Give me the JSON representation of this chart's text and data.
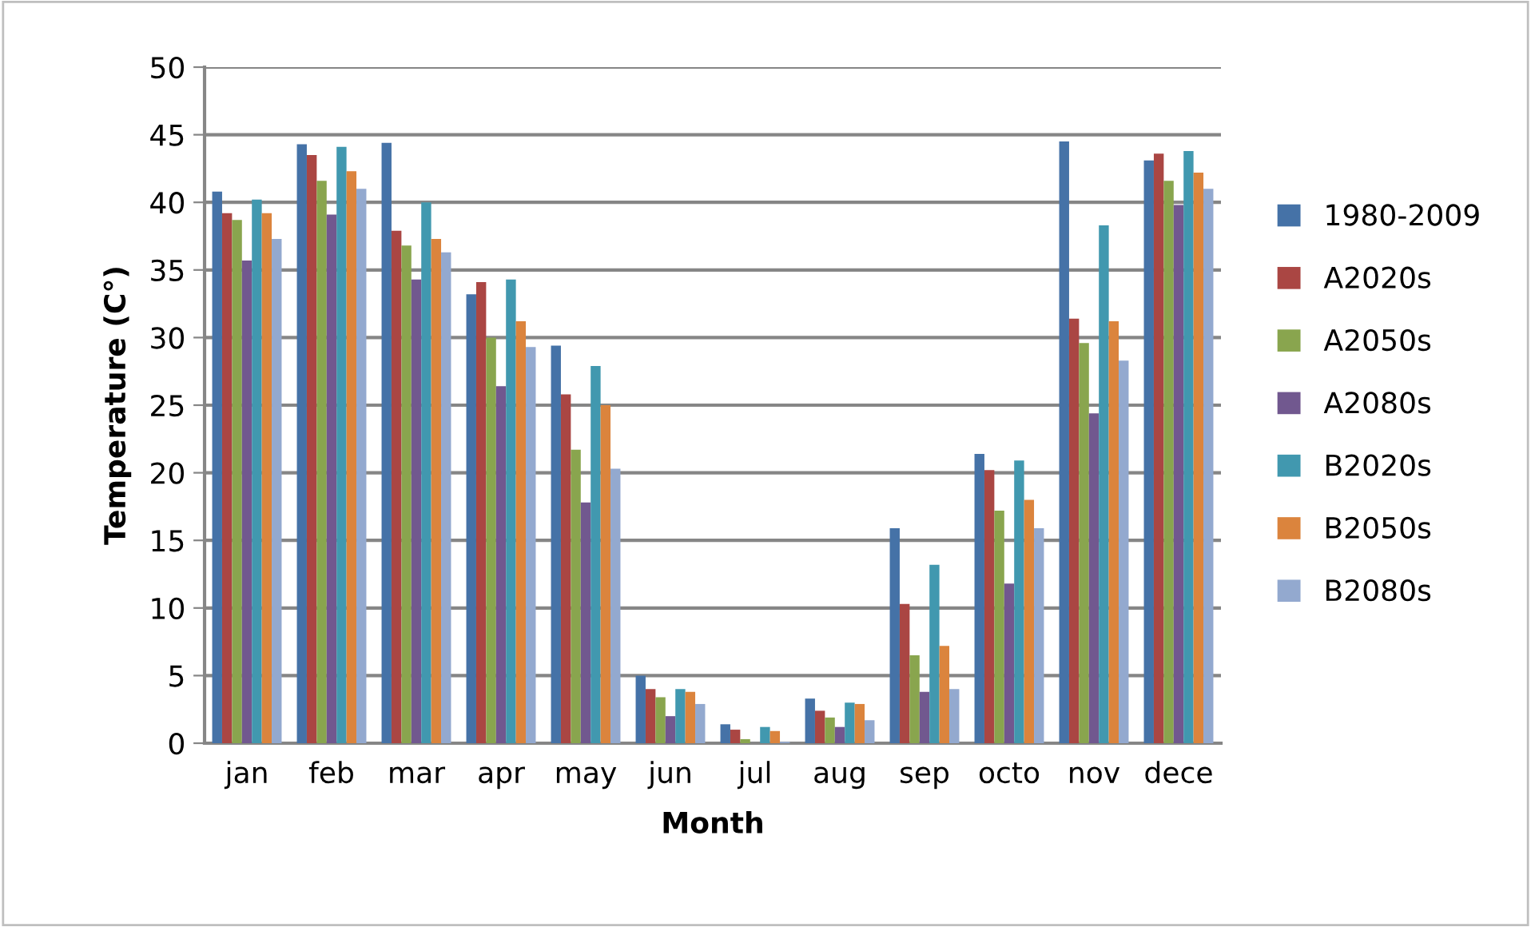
{
  "chart_data": {
    "type": "bar",
    "xlabel": "Month",
    "ylabel": "Temperature (C°)",
    "categories": [
      "jan",
      "feb",
      "mar",
      "apr",
      "may",
      "jun",
      "jul",
      "aug",
      "sep",
      "octo",
      "nov",
      "dece"
    ],
    "series": [
      {
        "name": "1980-2009",
        "color": "#4572a7",
        "values": [
          40.8,
          44.3,
          44.4,
          33.2,
          29.4,
          5.0,
          1.4,
          3.3,
          15.9,
          21.4,
          44.5,
          43.1
        ]
      },
      {
        "name": "A2020s",
        "color": "#aa4643",
        "values": [
          39.2,
          43.5,
          37.9,
          34.1,
          25.8,
          4.0,
          1.0,
          2.4,
          10.3,
          20.2,
          31.4,
          43.6
        ]
      },
      {
        "name": "A2050s",
        "color": "#89a54e",
        "values": [
          38.7,
          41.6,
          36.8,
          30.0,
          21.7,
          3.4,
          0.3,
          1.9,
          6.5,
          17.2,
          29.6,
          41.6
        ]
      },
      {
        "name": "A2080s",
        "color": "#71588f",
        "values": [
          35.7,
          39.1,
          34.3,
          26.4,
          17.8,
          2.0,
          0.0,
          1.2,
          3.8,
          11.8,
          24.4,
          39.8
        ]
      },
      {
        "name": "B2020s",
        "color": "#4198af",
        "values": [
          40.2,
          44.1,
          40.0,
          34.3,
          27.9,
          4.0,
          1.2,
          3.0,
          13.2,
          20.9,
          38.3,
          43.8
        ]
      },
      {
        "name": "B2050s",
        "color": "#db843d",
        "values": [
          39.2,
          42.3,
          37.3,
          31.2,
          25.0,
          3.8,
          0.9,
          2.9,
          7.2,
          18.0,
          31.2,
          42.2
        ]
      },
      {
        "name": "B2080s",
        "color": "#93a9cf",
        "values": [
          37.3,
          41.0,
          36.3,
          29.3,
          20.3,
          2.9,
          0.1,
          1.7,
          4.0,
          15.9,
          28.3,
          41.0
        ]
      }
    ],
    "ylim": [
      0,
      50
    ],
    "yticks": [
      0,
      5,
      10,
      15,
      20,
      25,
      30,
      35,
      40,
      45,
      50
    ],
    "grid": "y",
    "legend": "right"
  }
}
